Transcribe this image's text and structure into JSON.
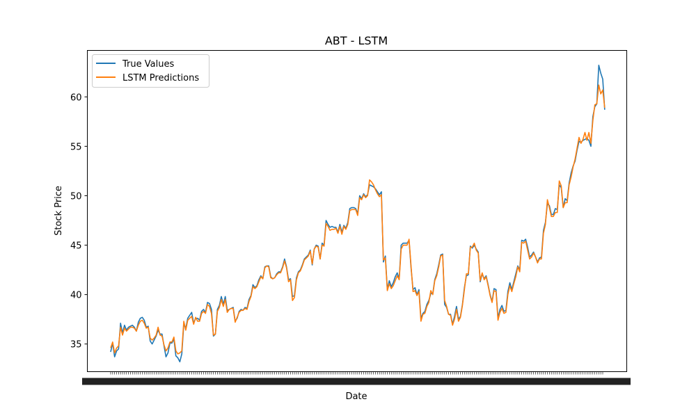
{
  "chart_data": {
    "type": "line",
    "title": "ABT - LSTM",
    "xlabel": "Date",
    "ylabel": "Stock Price",
    "ylim": [
      32.2,
      64.7
    ],
    "yticks": [
      35,
      40,
      45,
      50,
      55,
      60
    ],
    "grid": false,
    "legend_position": "top-left",
    "x_tick_labels_illegible": true,
    "num_points": 250,
    "series": [
      {
        "name": "True Values",
        "color": "#1f77b4",
        "values": [
          34.2,
          35.1,
          33.7,
          34.3,
          34.5,
          37.1,
          36.1,
          36.9,
          36.4,
          36.7,
          36.8,
          36.9,
          36.7,
          36.3,
          37.2,
          37.6,
          37.7,
          37.4,
          36.7,
          36.8,
          35.3,
          35.0,
          35.4,
          35.8,
          36.4,
          36.0,
          36.0,
          34.8,
          33.7,
          34.1,
          35.1,
          35.1,
          35.5,
          33.8,
          33.6,
          33.2,
          34.0,
          37.0,
          36.6,
          37.6,
          37.9,
          38.2,
          37.1,
          37.6,
          37.6,
          37.4,
          38.3,
          38.5,
          38.2,
          39.2,
          39.1,
          38.5,
          35.8,
          36.0,
          38.5,
          38.9,
          39.8,
          39.0,
          39.8,
          38.4,
          38.5,
          38.6,
          38.7,
          37.3,
          37.6,
          38.3,
          38.5,
          38.4,
          38.7,
          38.6,
          39.5,
          39.9,
          41.0,
          40.7,
          40.9,
          41.5,
          41.9,
          41.6,
          42.8,
          42.9,
          42.9,
          41.8,
          41.6,
          41.7,
          42.1,
          42.3,
          42.3,
          42.8,
          43.6,
          42.8,
          41.5,
          41.6,
          39.8,
          39.9,
          41.7,
          42.3,
          42.5,
          43.0,
          43.6,
          43.8,
          44.0,
          44.5,
          43.0,
          44.6,
          45.0,
          44.9,
          43.6,
          45.2,
          45.0,
          47.5,
          47.1,
          46.8,
          46.9,
          46.8,
          46.8,
          46.3,
          47.1,
          46.3,
          47.0,
          46.7,
          47.3,
          48.7,
          48.8,
          48.8,
          48.7,
          48.2,
          50.0,
          49.7,
          50.2,
          49.9,
          50.1,
          51.1,
          51.0,
          50.9,
          50.7,
          50.4,
          50.1,
          50.4,
          43.3,
          43.9,
          40.5,
          41.4,
          40.8,
          41.2,
          41.8,
          42.2,
          41.6,
          45.0,
          45.2,
          45.2,
          45.2,
          45.5,
          42.7,
          40.5,
          40.7,
          40.0,
          40.5,
          37.6,
          38.1,
          38.3,
          39.0,
          39.4,
          40.1,
          40.1,
          41.5,
          42.1,
          43.0,
          44.0,
          44.1,
          39.0,
          38.7,
          38.0,
          38.0,
          37.0,
          37.8,
          38.8,
          37.5,
          37.8,
          39.0,
          40.7,
          41.9,
          42.0,
          44.9,
          44.7,
          45.0,
          44.6,
          44.3,
          41.3,
          42.1,
          41.6,
          41.9,
          41.0,
          40.0,
          39.3,
          40.6,
          40.5,
          37.6,
          38.5,
          38.9,
          38.3,
          38.4,
          40.3,
          41.2,
          40.5,
          41.3,
          42.1,
          42.9,
          42.5,
          45.5,
          45.4,
          45.6,
          44.8,
          43.8,
          44.0,
          44.3,
          43.8,
          43.3,
          43.7,
          43.8,
          46.5,
          47.3,
          49.2,
          49.0,
          48.1,
          48.1,
          48.7,
          48.6,
          51.1,
          50.8,
          48.8,
          49.7,
          49.5,
          51.3,
          52.3,
          53.0,
          53.5,
          54.6,
          55.5,
          55.4,
          55.6,
          55.7,
          55.8,
          55.6,
          55.0,
          58.0,
          59.0,
          59.3,
          63.2,
          62.4,
          61.8,
          58.7
        ],
        "values_note": ""
      },
      {
        "name": "LSTM Predictions",
        "color": "#ff7f0e",
        "values": [
          34.6,
          35.2,
          34.1,
          34.6,
          34.8,
          36.7,
          35.9,
          36.6,
          36.3,
          36.5,
          36.7,
          36.7,
          36.6,
          36.3,
          36.9,
          37.3,
          37.4,
          37.1,
          36.6,
          36.7,
          35.6,
          35.4,
          35.6,
          35.9,
          36.7,
          35.9,
          35.8,
          34.9,
          34.3,
          34.6,
          35.2,
          35.2,
          35.7,
          34.3,
          34.0,
          34.1,
          34.3,
          37.3,
          36.4,
          37.4,
          37.6,
          37.8,
          37.0,
          37.7,
          37.3,
          37.3,
          38.1,
          38.3,
          38.1,
          39.0,
          38.8,
          38.1,
          35.9,
          36.0,
          38.3,
          38.7,
          39.5,
          38.8,
          39.5,
          38.2,
          38.5,
          38.6,
          38.6,
          37.2,
          37.7,
          38.2,
          38.4,
          38.4,
          38.6,
          38.5,
          39.3,
          39.8,
          40.8,
          40.6,
          40.8,
          41.3,
          41.8,
          41.6,
          42.7,
          42.9,
          42.8,
          41.7,
          41.6,
          41.7,
          42.0,
          42.2,
          42.2,
          42.7,
          43.4,
          42.7,
          41.3,
          41.5,
          39.4,
          39.7,
          41.5,
          42.2,
          42.4,
          42.9,
          43.5,
          43.7,
          43.9,
          44.4,
          43.1,
          44.6,
          44.9,
          44.8,
          43.6,
          45.0,
          44.9,
          47.2,
          46.9,
          46.5,
          46.6,
          46.6,
          46.7,
          46.2,
          46.9,
          46.1,
          46.9,
          46.6,
          47.1,
          48.5,
          48.6,
          48.6,
          48.6,
          48.0,
          49.8,
          49.6,
          50.1,
          49.8,
          50.0,
          51.6,
          51.4,
          51.1,
          50.6,
          50.2,
          49.9,
          50.1,
          43.5,
          43.7,
          40.4,
          41.1,
          40.6,
          40.9,
          41.4,
          41.9,
          41.5,
          44.6,
          45.0,
          45.0,
          45.0,
          45.6,
          42.9,
          40.3,
          40.4,
          39.9,
          40.3,
          37.3,
          38.0,
          38.1,
          38.8,
          39.2,
          40.4,
          40.0,
          41.4,
          41.9,
          42.8,
          43.9,
          44.0,
          39.4,
          38.8,
          38.0,
          37.9,
          36.9,
          37.5,
          38.5,
          37.3,
          37.7,
          38.9,
          40.5,
          42.1,
          42.1,
          44.8,
          44.8,
          45.2,
          44.5,
          44.2,
          41.4,
          42.2,
          41.5,
          41.8,
          40.9,
          39.9,
          39.2,
          40.4,
          40.3,
          37.4,
          38.2,
          38.6,
          38.1,
          38.2,
          40.0,
          40.9,
          40.3,
          41.1,
          41.8,
          42.8,
          42.3,
          45.3,
          45.2,
          45.4,
          44.5,
          43.6,
          43.8,
          44.2,
          43.8,
          43.2,
          43.6,
          43.6,
          46.2,
          47.1,
          49.6,
          48.8,
          47.9,
          47.9,
          48.3,
          48.3,
          51.5,
          51.0,
          48.8,
          49.3,
          49.3,
          51.1,
          51.9,
          52.9,
          53.7,
          54.8,
          55.9,
          55.3,
          55.7,
          56.4,
          55.6,
          56.4,
          55.3,
          57.6,
          59.2,
          59.3,
          61.2,
          60.3,
          60.7,
          58.9
        ]
      }
    ]
  }
}
